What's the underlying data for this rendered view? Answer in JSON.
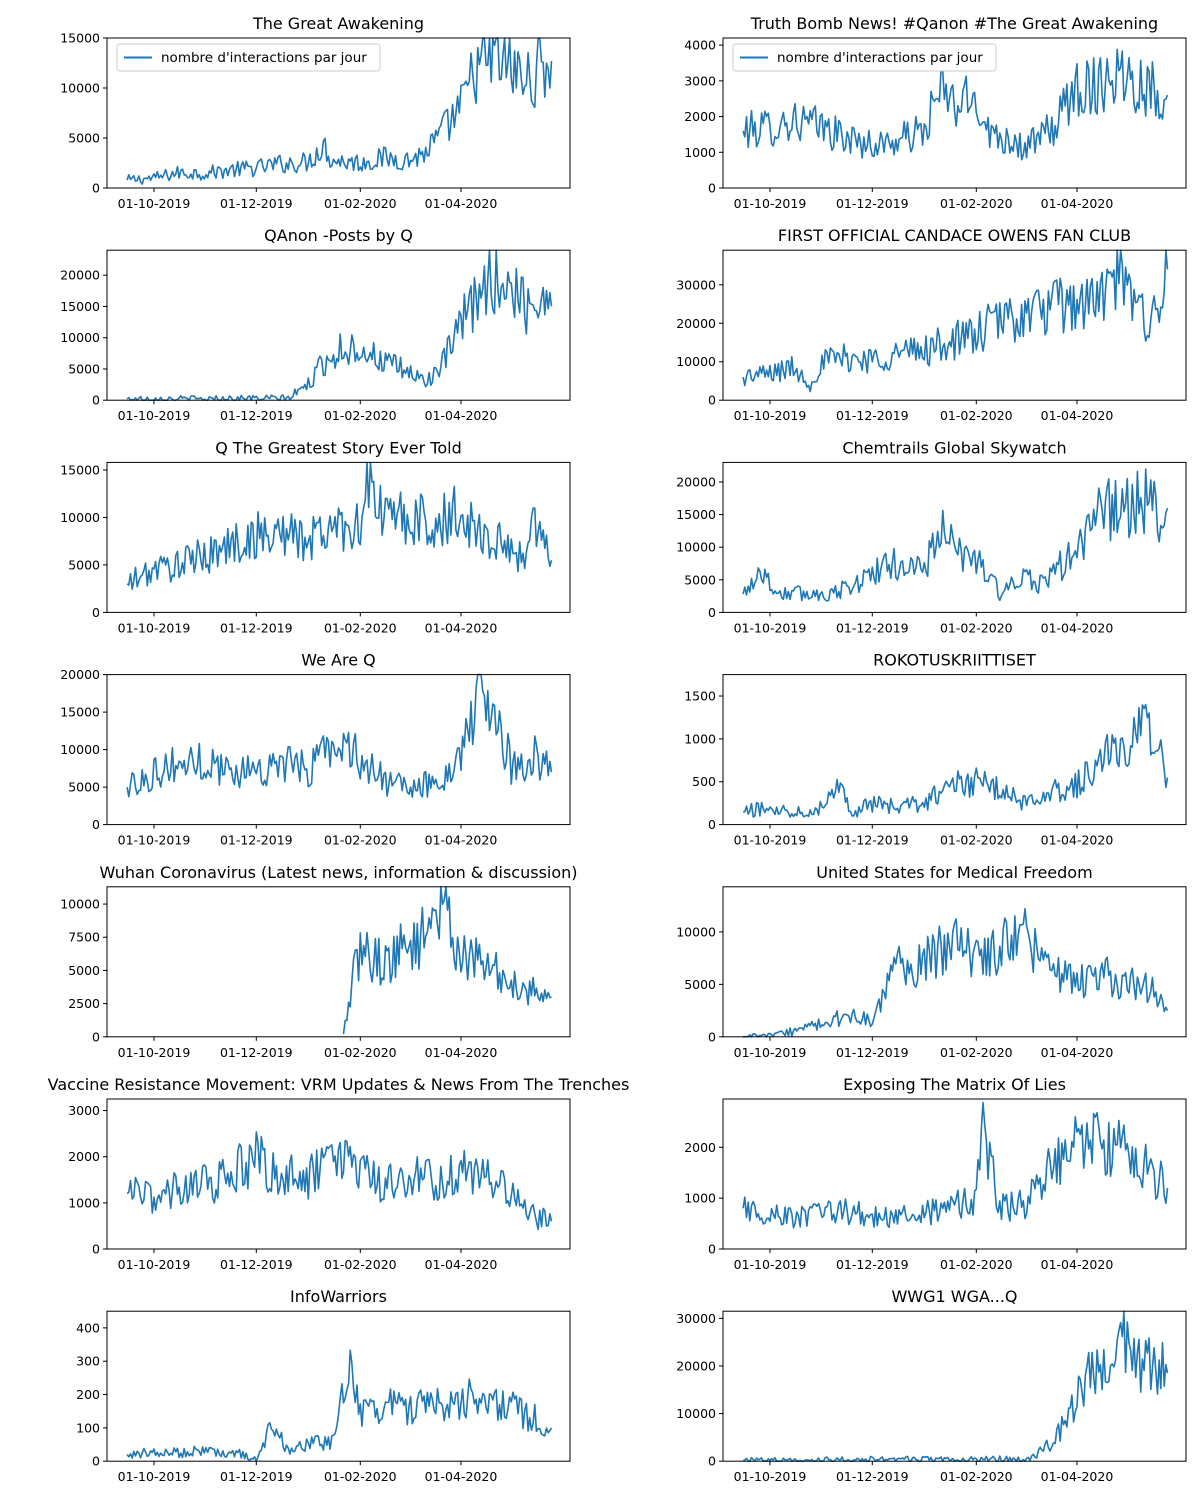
{
  "chart_data": [
    {
      "type": "line",
      "title": "The Great Awakening",
      "legend": "nombre d'interactions par jour",
      "x_ticks": [
        "01-10-2019",
        "01-12-2019",
        "01-02-2020",
        "01-04-2020"
      ],
      "yticks": [
        0,
        5000,
        10000,
        15000
      ],
      "ylim": [
        0,
        15000
      ],
      "xlim": [
        "2019-09-03",
        "2020-06-05"
      ],
      "series": [
        {
          "x": [
            "2019-09-15",
            "2019-10-01",
            "2019-10-15",
            "2019-11-01",
            "2019-11-15",
            "2019-12-01",
            "2019-12-15",
            "2020-01-01",
            "2020-01-10",
            "2020-01-15",
            "2020-02-01",
            "2020-02-15",
            "2020-03-01",
            "2020-03-10",
            "2020-03-20",
            "2020-04-01",
            "2020-04-10",
            "2020-04-20",
            "2020-05-01",
            "2020-05-10",
            "2020-05-20",
            "2020-05-25"
          ],
          "values": [
            800,
            1000,
            1500,
            1500,
            1800,
            2000,
            2400,
            2600,
            4300,
            2800,
            2500,
            3000,
            2800,
            3400,
            5300,
            8000,
            12000,
            13000,
            12000,
            10500,
            12500,
            12700
          ]
        }
      ]
    },
    {
      "type": "line",
      "title": "Truth Bomb News! #Qanon #The Great Awakening",
      "legend": "nombre d'interactions par jour",
      "x_ticks": [
        "01-10-2019",
        "01-12-2019",
        "01-02-2020",
        "01-04-2020"
      ],
      "yticks": [
        0,
        1000,
        2000,
        3000,
        4000
      ],
      "ylim": [
        0,
        4200
      ],
      "xlim": [
        "2019-09-03",
        "2020-06-05"
      ],
      "series": [
        {
          "x": [
            "2019-09-15",
            "2019-10-01",
            "2019-10-15",
            "2019-11-01",
            "2019-11-15",
            "2019-12-01",
            "2019-12-15",
            "2020-01-01",
            "2020-01-10",
            "2020-01-20",
            "2020-02-01",
            "2020-02-10",
            "2020-02-20",
            "2020-03-01",
            "2020-03-10",
            "2020-03-20",
            "2020-04-01",
            "2020-04-10",
            "2020-04-20",
            "2020-05-01",
            "2020-05-10",
            "2020-05-20",
            "2020-05-25"
          ],
          "values": [
            1600,
            1700,
            1900,
            1700,
            1400,
            1200,
            1300,
            1600,
            2700,
            2300,
            2500,
            1500,
            1400,
            1100,
            1400,
            1800,
            2900,
            2800,
            3200,
            3200,
            2900,
            2700,
            2600
          ]
        }
      ]
    },
    {
      "type": "line",
      "title": "QAnon -Posts by Q",
      "x_ticks": [
        "01-10-2019",
        "01-12-2019",
        "01-02-2020",
        "01-04-2020"
      ],
      "yticks": [
        0,
        5000,
        10000,
        15000,
        20000
      ],
      "ylim": [
        0,
        24000
      ],
      "xlim": [
        "2019-09-03",
        "2020-06-05"
      ],
      "series": [
        {
          "x": [
            "2019-09-15",
            "2019-10-01",
            "2019-11-01",
            "2019-12-01",
            "2019-12-20",
            "2020-01-01",
            "2020-01-10",
            "2020-01-20",
            "2020-02-01",
            "2020-02-15",
            "2020-03-01",
            "2020-03-10",
            "2020-03-20",
            "2020-04-01",
            "2020-04-10",
            "2020-04-20",
            "2020-05-01",
            "2020-05-10",
            "2020-05-20",
            "2020-05-25"
          ],
          "values": [
            200,
            200,
            200,
            300,
            300,
            2500,
            6000,
            8000,
            8500,
            6000,
            4500,
            3000,
            5000,
            12000,
            16000,
            20000,
            18000,
            15000,
            17000,
            15000
          ]
        }
      ]
    },
    {
      "type": "line",
      "title": "FIRST OFFICIAL CANDACE OWENS FAN CLUB",
      "x_ticks": [
        "01-10-2019",
        "01-12-2019",
        "01-02-2020",
        "01-04-2020"
      ],
      "yticks": [
        0,
        10000,
        20000,
        30000
      ],
      "ylim": [
        0,
        39000
      ],
      "xlim": [
        "2019-09-03",
        "2020-06-05"
      ],
      "series": [
        {
          "x": [
            "2019-09-15",
            "2019-10-01",
            "2019-10-15",
            "2019-10-25",
            "2019-11-01",
            "2019-11-15",
            "2019-12-01",
            "2019-12-15",
            "2020-01-01",
            "2020-01-15",
            "2020-02-01",
            "2020-02-15",
            "2020-03-01",
            "2020-03-15",
            "2020-04-01",
            "2020-04-15",
            "2020-04-25",
            "2020-05-01",
            "2020-05-15",
            "2020-05-20",
            "2020-05-25"
          ],
          "values": [
            6000,
            7000,
            8500,
            4000,
            10000,
            11000,
            10500,
            12000,
            13000,
            15000,
            17000,
            21000,
            22000,
            24000,
            25000,
            26000,
            33000,
            27000,
            21000,
            26000,
            34000
          ]
        }
      ]
    },
    {
      "type": "line",
      "title": "Q The Greatest Story Ever Told",
      "x_ticks": [
        "01-10-2019",
        "01-12-2019",
        "01-02-2020",
        "01-04-2020"
      ],
      "yticks": [
        0,
        5000,
        10000,
        15000
      ],
      "ylim": [
        0,
        15800
      ],
      "xlim": [
        "2019-09-03",
        "2020-06-05"
      ],
      "series": [
        {
          "x": [
            "2019-09-15",
            "2019-10-01",
            "2019-10-15",
            "2019-11-01",
            "2019-11-15",
            "2019-12-01",
            "2019-12-15",
            "2020-01-01",
            "2020-01-15",
            "2020-02-01",
            "2020-02-05",
            "2020-02-15",
            "2020-03-01",
            "2020-03-15",
            "2020-04-01",
            "2020-04-15",
            "2020-05-01",
            "2020-05-10",
            "2020-05-15",
            "2020-05-25"
          ],
          "values": [
            3000,
            4500,
            5000,
            6000,
            7000,
            8000,
            8500,
            7500,
            9000,
            9500,
            14000,
            10000,
            10000,
            9000,
            10500,
            8000,
            6500,
            6000,
            10000,
            5500
          ]
        }
      ]
    },
    {
      "type": "line",
      "title": "Chemtrails Global Skywatch",
      "x_ticks": [
        "01-10-2019",
        "01-12-2019",
        "01-02-2020",
        "01-04-2020"
      ],
      "yticks": [
        0,
        5000,
        10000,
        15000,
        20000
      ],
      "ylim": [
        0,
        23000
      ],
      "xlim": [
        "2019-09-03",
        "2020-06-05"
      ],
      "series": [
        {
          "x": [
            "2019-09-15",
            "2019-09-25",
            "2019-10-05",
            "2019-11-01",
            "2019-11-15",
            "2019-12-01",
            "2019-12-15",
            "2020-01-01",
            "2020-01-10",
            "2020-01-20",
            "2020-02-01",
            "2020-02-15",
            "2020-03-01",
            "2020-03-10",
            "2020-03-20",
            "2020-04-01",
            "2020-04-15",
            "2020-05-01",
            "2020-05-15",
            "2020-05-20",
            "2020-05-25"
          ],
          "values": [
            2800,
            6500,
            3000,
            2800,
            3500,
            6000,
            7500,
            6500,
            13000,
            9000,
            8500,
            3000,
            5000,
            4500,
            6500,
            9500,
            15500,
            16500,
            17000,
            13000,
            16000
          ]
        }
      ]
    },
    {
      "type": "line",
      "title": "We Are Q",
      "x_ticks": [
        "01-10-2019",
        "01-12-2019",
        "01-02-2020",
        "01-04-2020"
      ],
      "yticks": [
        0,
        5000,
        10000,
        15000,
        20000
      ],
      "ylim": [
        0,
        20000
      ],
      "xlim": [
        "2019-09-03",
        "2020-06-05"
      ],
      "series": [
        {
          "x": [
            "2019-09-15",
            "2019-10-01",
            "2019-10-15",
            "2019-11-01",
            "2019-11-15",
            "2019-12-01",
            "2019-12-15",
            "2020-01-01",
            "2020-01-15",
            "2020-02-01",
            "2020-02-15",
            "2020-03-01",
            "2020-03-15",
            "2020-04-01",
            "2020-04-10",
            "2020-04-20",
            "2020-05-01",
            "2020-05-15",
            "2020-05-25"
          ],
          "values": [
            5000,
            7000,
            8000,
            8500,
            7000,
            7500,
            8000,
            7500,
            11000,
            9000,
            6000,
            4500,
            5500,
            9000,
            16000,
            15000,
            8000,
            9000,
            7000
          ]
        }
      ]
    },
    {
      "type": "line",
      "title": "ROKOTUSKRIITTISET",
      "x_ticks": [
        "01-10-2019",
        "01-12-2019",
        "01-02-2020",
        "01-04-2020"
      ],
      "yticks": [
        0,
        500,
        1000,
        1500
      ],
      "ylim": [
        0,
        1750
      ],
      "xlim": [
        "2019-09-03",
        "2020-06-05"
      ],
      "series": [
        {
          "x": [
            "2019-09-15",
            "2019-10-01",
            "2019-10-15",
            "2019-11-01",
            "2019-11-10",
            "2019-11-20",
            "2019-12-01",
            "2019-12-15",
            "2020-01-01",
            "2020-01-15",
            "2020-02-01",
            "2020-02-15",
            "2020-03-01",
            "2020-03-15",
            "2020-04-01",
            "2020-04-15",
            "2020-05-01",
            "2020-05-10",
            "2020-05-20",
            "2020-05-25"
          ],
          "values": [
            150,
            200,
            150,
            200,
            500,
            150,
            250,
            200,
            250,
            450,
            500,
            400,
            250,
            400,
            450,
            800,
            900,
            1100,
            1000,
            550
          ]
        }
      ]
    },
    {
      "type": "line",
      "title": "Wuhan Coronavirus (Latest news, information & discussion)",
      "x_ticks": [
        "01-10-2019",
        "01-12-2019",
        "01-02-2020",
        "01-04-2020"
      ],
      "yticks": [
        0,
        2500,
        5000,
        7500,
        10000
      ],
      "ylim": [
        0,
        11300
      ],
      "xlim": [
        "2019-09-03",
        "2020-06-05"
      ],
      "series": [
        {
          "x": [
            "2020-01-22",
            "2020-01-28",
            "2020-02-01",
            "2020-02-15",
            "2020-03-01",
            "2020-03-10",
            "2020-03-15",
            "2020-03-25",
            "2020-04-01",
            "2020-04-15",
            "2020-05-01",
            "2020-05-15",
            "2020-05-25"
          ],
          "values": [
            200,
            4500,
            6500,
            5500,
            7000,
            7500,
            10000,
            9000,
            6000,
            5500,
            4000,
            3500,
            3000
          ]
        }
      ]
    },
    {
      "type": "line",
      "title": "United States for Medical Freedom",
      "x_ticks": [
        "01-10-2019",
        "01-12-2019",
        "01-02-2020",
        "01-04-2020"
      ],
      "yticks": [
        0,
        5000,
        10000
      ],
      "ylim": [
        0,
        14300
      ],
      "xlim": [
        "2019-09-03",
        "2020-06-05"
      ],
      "series": [
        {
          "x": [
            "2019-09-15",
            "2019-10-01",
            "2019-10-15",
            "2019-11-01",
            "2019-11-15",
            "2019-12-01",
            "2019-12-15",
            "2020-01-01",
            "2020-01-15",
            "2020-02-01",
            "2020-02-15",
            "2020-03-01",
            "2020-03-15",
            "2020-04-01",
            "2020-04-15",
            "2020-05-01",
            "2020-05-15",
            "2020-05-25"
          ],
          "values": [
            0,
            100,
            500,
            1200,
            2000,
            1500,
            6500,
            7000,
            9000,
            7500,
            8500,
            9500,
            7000,
            5000,
            6000,
            5000,
            4500,
            2500
          ]
        }
      ]
    },
    {
      "type": "line",
      "title": "Vaccine Resistance Movement: VRM Updates & News From The Trenches",
      "x_ticks": [
        "01-10-2019",
        "01-12-2019",
        "01-02-2020",
        "01-04-2020"
      ],
      "yticks": [
        0,
        1000,
        2000,
        3000
      ],
      "ylim": [
        0,
        3250
      ],
      "xlim": [
        "2019-09-03",
        "2020-06-05"
      ],
      "series": [
        {
          "x": [
            "2019-09-15",
            "2019-10-01",
            "2019-10-15",
            "2019-11-01",
            "2019-11-15",
            "2019-12-01",
            "2019-12-15",
            "2020-01-01",
            "2020-01-15",
            "2020-02-01",
            "2020-02-15",
            "2020-03-01",
            "2020-03-15",
            "2020-04-01",
            "2020-04-15",
            "2020-05-01",
            "2020-05-15",
            "2020-05-25"
          ],
          "values": [
            1200,
            1100,
            1300,
            1400,
            1600,
            2000,
            1600,
            1500,
            2000,
            1600,
            1400,
            1600,
            1500,
            1700,
            1500,
            1200,
            700,
            600
          ]
        }
      ]
    },
    {
      "type": "line",
      "title": "Exposing The Matrix Of Lies",
      "x_ticks": [
        "01-10-2019",
        "01-12-2019",
        "01-02-2020",
        "01-04-2020"
      ],
      "yticks": [
        0,
        1000,
        2000
      ],
      "ylim": [
        0,
        2950
      ],
      "xlim": [
        "2019-09-03",
        "2020-06-05"
      ],
      "series": [
        {
          "x": [
            "2019-09-15",
            "2019-10-01",
            "2019-10-15",
            "2019-11-01",
            "2019-11-15",
            "2019-12-01",
            "2019-12-15",
            "2020-01-01",
            "2020-01-15",
            "2020-02-01",
            "2020-02-05",
            "2020-02-15",
            "2020-03-01",
            "2020-03-15",
            "2020-04-01",
            "2020-04-15",
            "2020-05-01",
            "2020-05-15",
            "2020-05-25"
          ],
          "values": [
            800,
            700,
            600,
            700,
            750,
            650,
            600,
            700,
            800,
            1000,
            2400,
            800,
            900,
            1500,
            2200,
            2100,
            2000,
            1500,
            1200
          ]
        }
      ]
    },
    {
      "type": "line",
      "title": "InfoWarriors",
      "x_ticks": [
        "01-10-2019",
        "01-12-2019",
        "01-02-2020",
        "01-04-2020"
      ],
      "yticks": [
        0,
        100,
        200,
        300,
        400
      ],
      "ylim": [
        0,
        450
      ],
      "xlim": [
        "2019-09-03",
        "2020-06-05"
      ],
      "series": [
        {
          "x": [
            "2019-09-15",
            "2019-10-01",
            "2019-11-01",
            "2019-11-25",
            "2019-12-01",
            "2019-12-10",
            "2019-12-20",
            "2020-01-01",
            "2020-01-15",
            "2020-01-25",
            "2020-02-01",
            "2020-02-15",
            "2020-03-01",
            "2020-03-15",
            "2020-04-01",
            "2020-04-15",
            "2020-05-01",
            "2020-05-15",
            "2020-05-25"
          ],
          "values": [
            20,
            25,
            30,
            20,
            5,
            110,
            30,
            50,
            60,
            300,
            150,
            170,
            160,
            170,
            180,
            200,
            160,
            130,
            100
          ]
        }
      ]
    },
    {
      "type": "line",
      "title": "WWG1 WGA...Q",
      "x_ticks": [
        "01-10-2019",
        "01-12-2019",
        "01-02-2020",
        "01-04-2020"
      ],
      "yticks": [
        0,
        10000,
        20000,
        30000
      ],
      "ylim": [
        0,
        31500
      ],
      "xlim": [
        "2019-09-03",
        "2020-06-05"
      ],
      "series": [
        {
          "x": [
            "2019-09-15",
            "2019-10-01",
            "2019-11-01",
            "2019-12-01",
            "2020-01-01",
            "2020-02-01",
            "2020-03-01",
            "2020-03-10",
            "2020-03-20",
            "2020-04-01",
            "2020-04-10",
            "2020-04-20",
            "2020-05-01",
            "2020-05-10",
            "2020-05-20",
            "2020-05-25"
          ],
          "values": [
            100,
            100,
            200,
            300,
            300,
            300,
            400,
            2000,
            5000,
            13000,
            20000,
            22000,
            25000,
            20000,
            20000,
            18500
          ]
        }
      ]
    }
  ]
}
